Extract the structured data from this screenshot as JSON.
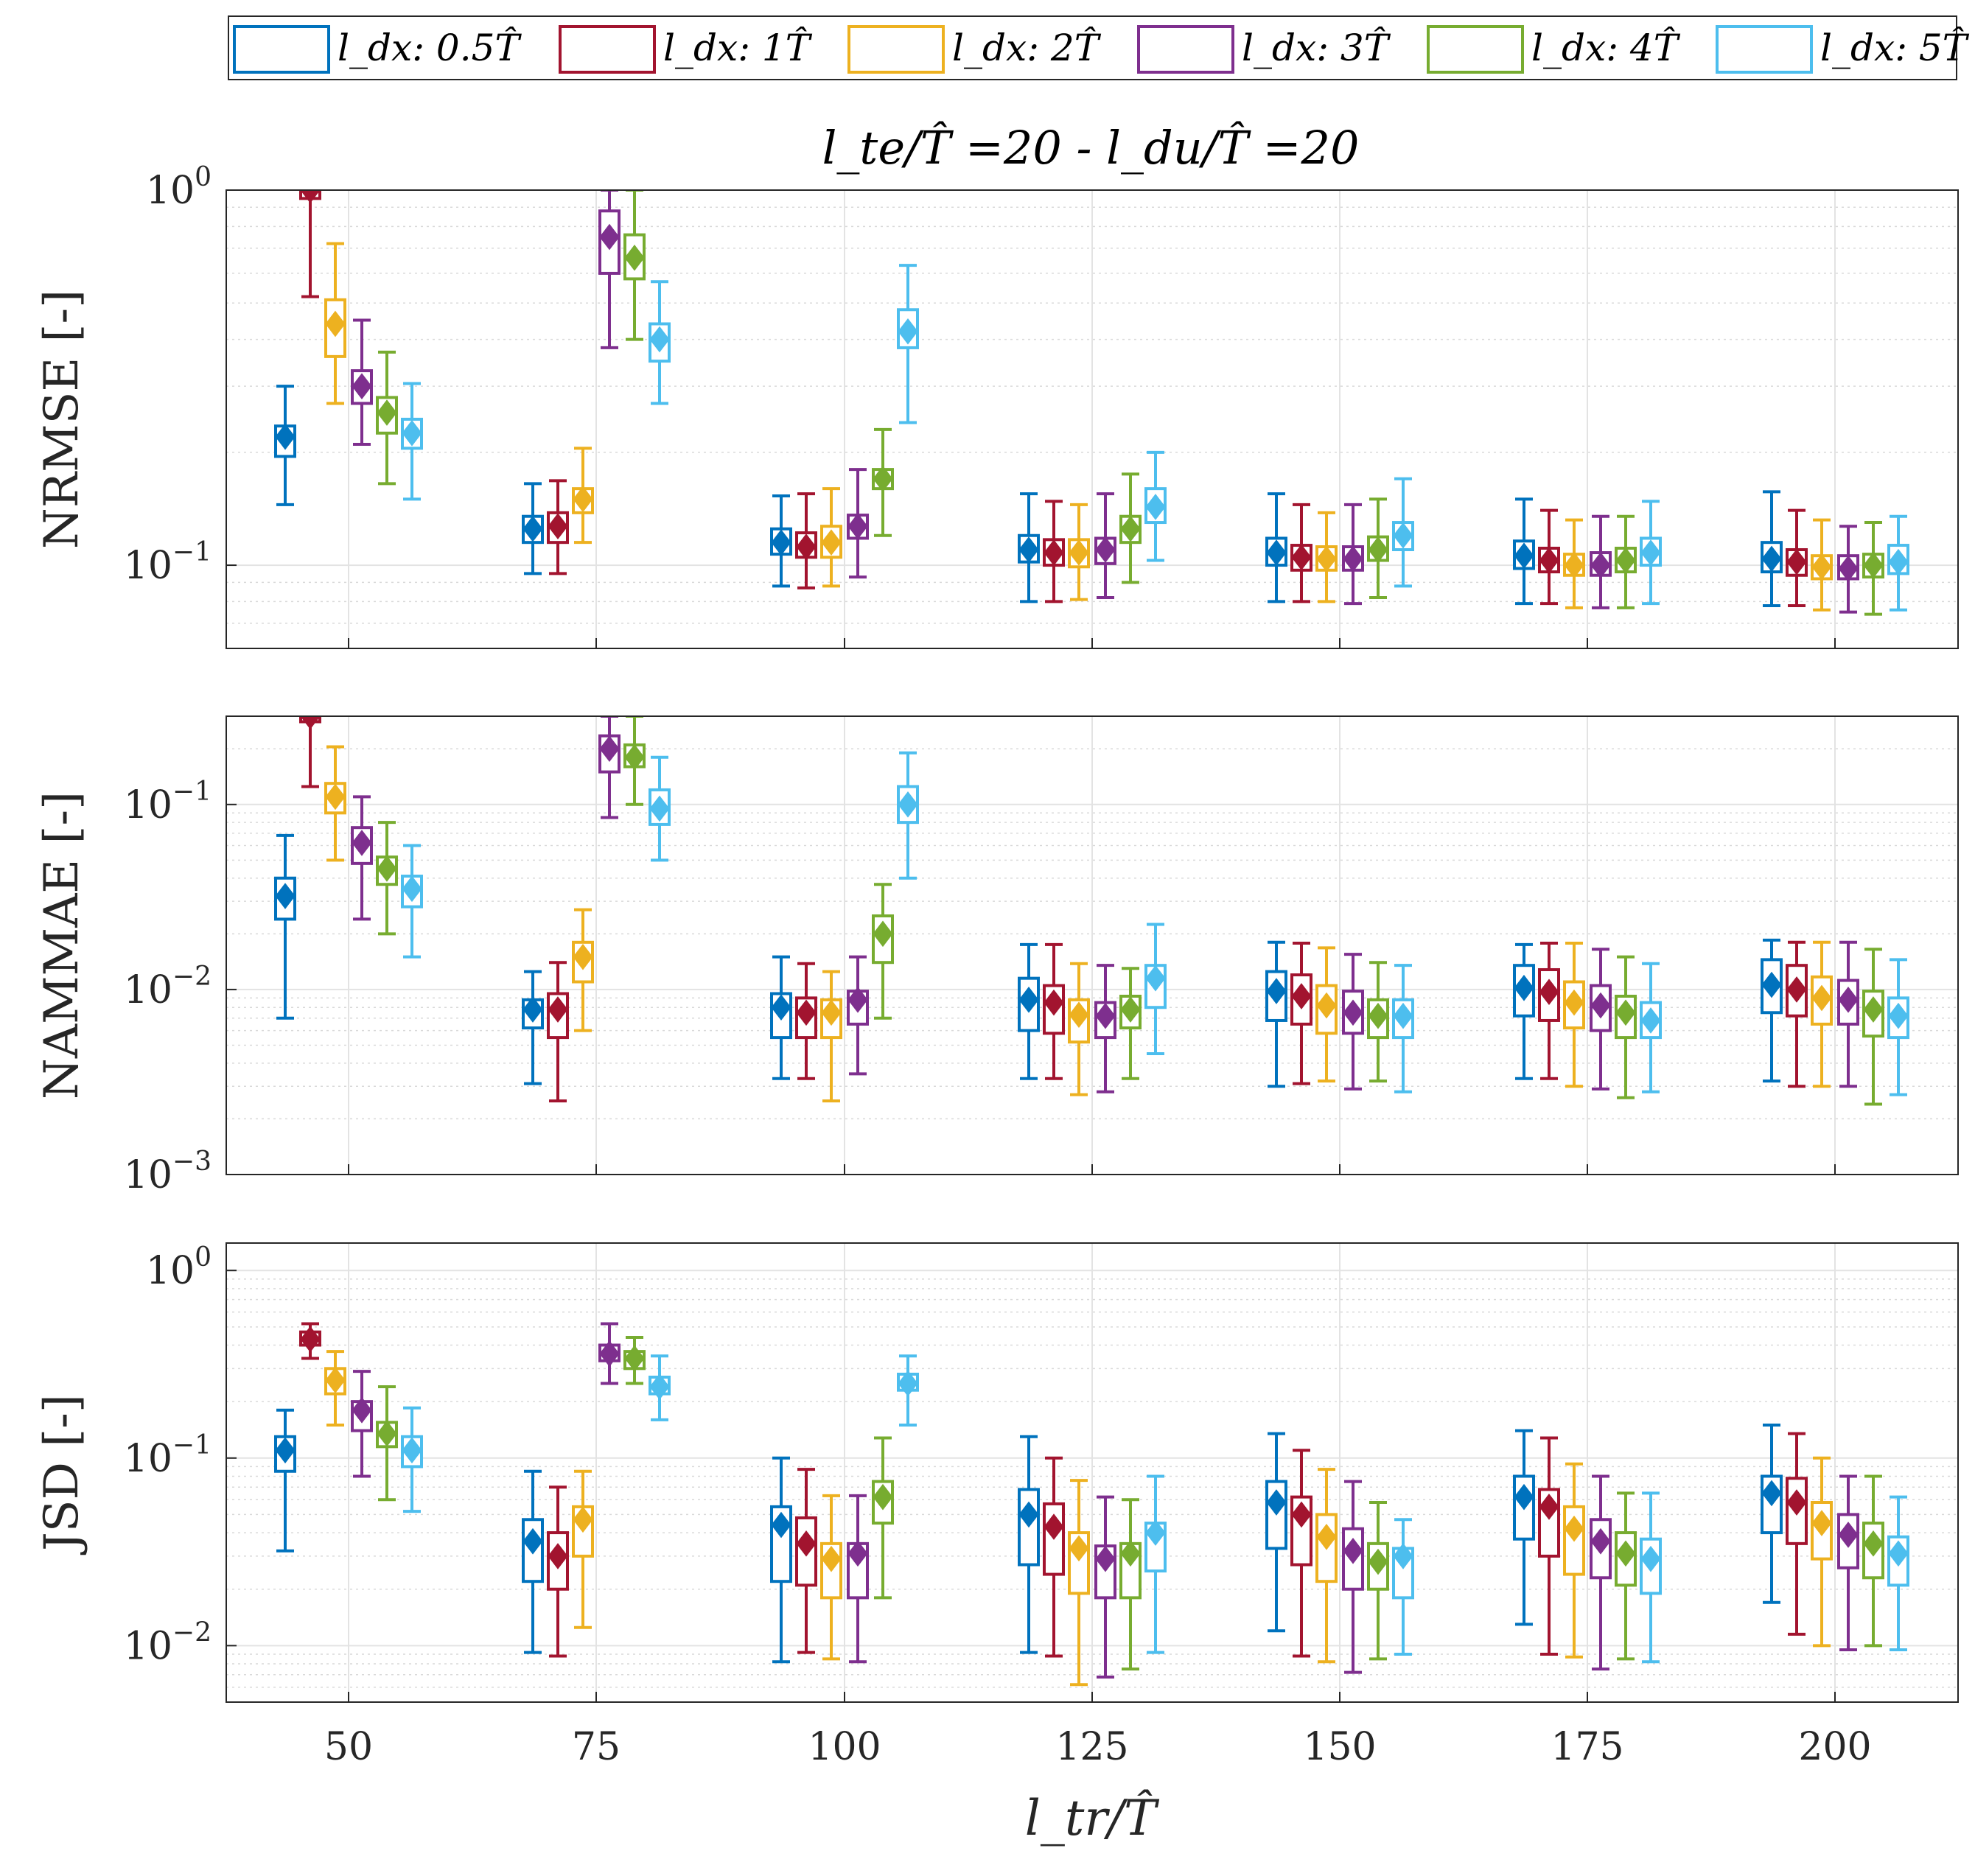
{
  "legend": [
    {
      "label": "l_dx: 0.5T̂",
      "color": "#0072BD"
    },
    {
      "label": "l_dx: 1T̂",
      "color": "#A2142F"
    },
    {
      "label": "l_dx: 2T̂",
      "color": "#EDB120"
    },
    {
      "label": "l_dx: 3T̂",
      "color": "#7E2F8E"
    },
    {
      "label": "l_dx: 4T̂",
      "color": "#77AC30"
    },
    {
      "label": "l_dx: 5T̂",
      "color": "#4DBEEE"
    }
  ],
  "figure": {
    "title": "l_te/T̂ =20 - l_du/T̂ =20",
    "xlabel": "l_tr/T̂"
  },
  "chart_data": [
    {
      "type": "box",
      "name": "nrmse",
      "ylabel": "NRMSE [-]",
      "yscale": "log",
      "ylim": [
        0.06,
        1.0
      ],
      "ytick_labels": [
        "10^0",
        "10^-1"
      ],
      "categories": [
        "50",
        "75",
        "100",
        "125",
        "150",
        "175",
        "200"
      ],
      "series": [
        {
          "name": "0.5T̂",
          "boxes": [
            [
              0.145,
              0.195,
              0.22,
              0.235,
              0.3
            ],
            [
              0.095,
              0.115,
              0.125,
              0.135,
              0.165
            ],
            [
              0.088,
              0.107,
              0.115,
              0.125,
              0.153
            ],
            [
              0.08,
              0.102,
              0.11,
              0.12,
              0.155
            ],
            [
              0.08,
              0.1,
              0.108,
              0.118,
              0.155
            ],
            [
              0.079,
              0.098,
              0.106,
              0.116,
              0.15
            ],
            [
              0.078,
              0.096,
              0.104,
              0.115,
              0.157
            ]
          ]
        },
        {
          "name": "1T̂",
          "boxes": [
            [
              0.52,
              0.95,
              1.0,
              1.0,
              1.0
            ],
            [
              0.095,
              0.115,
              0.127,
              0.138,
              0.168
            ],
            [
              0.087,
              0.105,
              0.112,
              0.122,
              0.155
            ],
            [
              0.08,
              0.1,
              0.108,
              0.117,
              0.148
            ],
            [
              0.08,
              0.097,
              0.105,
              0.113,
              0.145
            ],
            [
              0.079,
              0.096,
              0.103,
              0.111,
              0.14
            ],
            [
              0.078,
              0.094,
              0.102,
              0.11,
              0.14
            ]
          ]
        },
        {
          "name": "2T̂",
          "boxes": [
            [
              0.27,
              0.36,
              0.44,
              0.51,
              0.72
            ],
            [
              0.115,
              0.138,
              0.15,
              0.16,
              0.205
            ],
            [
              0.088,
              0.105,
              0.115,
              0.127,
              0.16
            ],
            [
              0.081,
              0.099,
              0.108,
              0.117,
              0.145
            ],
            [
              0.08,
              0.097,
              0.104,
              0.112,
              0.138
            ],
            [
              0.077,
              0.094,
              0.1,
              0.107,
              0.132
            ],
            [
              0.076,
              0.092,
              0.099,
              0.106,
              0.132
            ]
          ]
        },
        {
          "name": "3T̂",
          "boxes": [
            [
              0.21,
              0.27,
              0.3,
              0.33,
              0.45
            ],
            [
              0.38,
              0.6,
              0.75,
              0.88,
              1.0
            ],
            [
              0.093,
              0.118,
              0.127,
              0.136,
              0.18
            ],
            [
              0.082,
              0.101,
              0.11,
              0.118,
              0.155
            ],
            [
              0.079,
              0.097,
              0.104,
              0.112,
              0.145
            ],
            [
              0.077,
              0.094,
              0.1,
              0.108,
              0.135
            ],
            [
              0.075,
              0.092,
              0.098,
              0.106,
              0.127
            ]
          ]
        },
        {
          "name": "4T̂",
          "boxes": [
            [
              0.165,
              0.225,
              0.255,
              0.28,
              0.37
            ],
            [
              0.4,
              0.58,
              0.66,
              0.76,
              1.0
            ],
            [
              0.12,
              0.16,
              0.17,
              0.18,
              0.23
            ],
            [
              0.09,
              0.115,
              0.125,
              0.135,
              0.175
            ],
            [
              0.082,
              0.103,
              0.11,
              0.119,
              0.15
            ],
            [
              0.077,
              0.096,
              0.103,
              0.111,
              0.135
            ],
            [
              0.074,
              0.093,
              0.1,
              0.107,
              0.13
            ]
          ]
        },
        {
          "name": "5T̂",
          "boxes": [
            [
              0.15,
              0.205,
              0.225,
              0.245,
              0.305
            ],
            [
              0.27,
              0.35,
              0.4,
              0.44,
              0.57
            ],
            [
              0.24,
              0.38,
              0.42,
              0.48,
              0.63
            ],
            [
              0.103,
              0.13,
              0.143,
              0.16,
              0.2
            ],
            [
              0.088,
              0.11,
              0.12,
              0.13,
              0.17
            ],
            [
              0.079,
              0.1,
              0.108,
              0.118,
              0.148
            ],
            [
              0.076,
              0.095,
              0.102,
              0.113,
              0.135
            ]
          ]
        }
      ]
    },
    {
      "type": "box",
      "name": "nammae",
      "ylabel": "NAMMAE [-]",
      "yscale": "log",
      "ylim": [
        0.001,
        0.3
      ],
      "ytick_labels": [
        "10^-1",
        "10^-2",
        "10^-3"
      ],
      "categories": [
        "50",
        "75",
        "100",
        "125",
        "150",
        "175",
        "200"
      ],
      "series": [
        {
          "name": "0.5T̂",
          "boxes": [
            [
              0.007,
              0.024,
              0.032,
              0.04,
              0.068
            ],
            [
              0.0031,
              0.0062,
              0.0078,
              0.0088,
              0.0125
            ],
            [
              0.0033,
              0.0055,
              0.008,
              0.0095,
              0.015
            ],
            [
              0.0033,
              0.006,
              0.0088,
              0.0115,
              0.0175
            ],
            [
              0.003,
              0.0068,
              0.0098,
              0.0125,
              0.018
            ],
            [
              0.0033,
              0.0072,
              0.0102,
              0.0135,
              0.0175
            ],
            [
              0.0032,
              0.0075,
              0.0106,
              0.0145,
              0.0185
            ]
          ]
        },
        {
          "name": "1T̂",
          "boxes": [
            [
              0.125,
              0.28,
              0.3,
              0.3,
              0.3
            ],
            [
              0.0025,
              0.0055,
              0.0078,
              0.0095,
              0.014
            ],
            [
              0.0033,
              0.0055,
              0.0075,
              0.009,
              0.0138
            ],
            [
              0.0033,
              0.0058,
              0.0085,
              0.0105,
              0.0175
            ],
            [
              0.0031,
              0.0065,
              0.0092,
              0.012,
              0.0178
            ],
            [
              0.0033,
              0.0068,
              0.0097,
              0.0128,
              0.0178
            ],
            [
              0.003,
              0.0072,
              0.01,
              0.0135,
              0.018
            ]
          ]
        },
        {
          "name": "2T̂",
          "boxes": [
            [
              0.05,
              0.09,
              0.11,
              0.13,
              0.205
            ],
            [
              0.006,
              0.011,
              0.015,
              0.018,
              0.027
            ],
            [
              0.0025,
              0.0055,
              0.0075,
              0.0088,
              0.0125
            ],
            [
              0.0027,
              0.0052,
              0.0073,
              0.0088,
              0.0138
            ],
            [
              0.0032,
              0.0058,
              0.0082,
              0.0105,
              0.0168
            ],
            [
              0.003,
              0.0062,
              0.0085,
              0.011,
              0.0178
            ],
            [
              0.003,
              0.0065,
              0.009,
              0.0117,
              0.018
            ]
          ]
        },
        {
          "name": "3T̂",
          "boxes": [
            [
              0.024,
              0.048,
              0.062,
              0.075,
              0.11
            ],
            [
              0.085,
              0.15,
              0.2,
              0.235,
              0.3
            ],
            [
              0.0035,
              0.0065,
              0.0088,
              0.0098,
              0.015
            ],
            [
              0.0028,
              0.0055,
              0.0072,
              0.0085,
              0.0135
            ],
            [
              0.0029,
              0.0058,
              0.0075,
              0.0098,
              0.0155
            ],
            [
              0.0029,
              0.006,
              0.0082,
              0.0105,
              0.0165
            ],
            [
              0.003,
              0.0065,
              0.0088,
              0.0112,
              0.018
            ]
          ]
        },
        {
          "name": "4T̂",
          "boxes": [
            [
              0.02,
              0.037,
              0.045,
              0.052,
              0.08
            ],
            [
              0.1,
              0.16,
              0.18,
              0.21,
              0.3
            ],
            [
              0.007,
              0.014,
              0.02,
              0.025,
              0.037
            ],
            [
              0.0033,
              0.0062,
              0.0078,
              0.0092,
              0.013
            ],
            [
              0.0032,
              0.0055,
              0.0072,
              0.0088,
              0.014
            ],
            [
              0.0026,
              0.0055,
              0.0075,
              0.0092,
              0.015
            ],
            [
              0.0024,
              0.0056,
              0.0078,
              0.0098,
              0.0165
            ]
          ]
        },
        {
          "name": "5T̂",
          "boxes": [
            [
              0.015,
              0.028,
              0.035,
              0.041,
              0.06
            ],
            [
              0.05,
              0.078,
              0.095,
              0.12,
              0.18
            ],
            [
              0.04,
              0.08,
              0.1,
              0.125,
              0.19
            ],
            [
              0.0045,
              0.008,
              0.0115,
              0.0135,
              0.0225
            ],
            [
              0.0028,
              0.0055,
              0.0072,
              0.0088,
              0.0135
            ],
            [
              0.0028,
              0.0055,
              0.0068,
              0.0085,
              0.0138
            ],
            [
              0.0027,
              0.0055,
              0.0072,
              0.009,
              0.0145
            ]
          ]
        }
      ]
    },
    {
      "type": "box",
      "name": "jsd",
      "ylabel": "JSD [-]",
      "yscale": "log",
      "ylim": [
        0.005,
        1.4
      ],
      "ytick_labels": [
        "10^0",
        "10^-1",
        "10^-2"
      ],
      "categories": [
        "50",
        "75",
        "100",
        "125",
        "150",
        "175",
        "200"
      ],
      "series": [
        {
          "name": "0.5T̂",
          "boxes": [
            [
              0.032,
              0.085,
              0.11,
              0.13,
              0.18
            ],
            [
              0.0092,
              0.022,
              0.036,
              0.047,
              0.085
            ],
            [
              0.0082,
              0.022,
              0.044,
              0.055,
              0.1
            ],
            [
              0.0092,
              0.027,
              0.05,
              0.068,
              0.13
            ],
            [
              0.012,
              0.033,
              0.058,
              0.075,
              0.135
            ],
            [
              0.013,
              0.037,
              0.062,
              0.08,
              0.14
            ],
            [
              0.017,
              0.04,
              0.065,
              0.08,
              0.15
            ]
          ]
        },
        {
          "name": "1T̂",
          "boxes": [
            [
              0.34,
              0.4,
              0.43,
              0.47,
              0.52
            ],
            [
              0.0088,
              0.02,
              0.03,
              0.04,
              0.07
            ],
            [
              0.0092,
              0.021,
              0.035,
              0.048,
              0.087
            ],
            [
              0.0088,
              0.024,
              0.043,
              0.057,
              0.1
            ],
            [
              0.0088,
              0.027,
              0.05,
              0.062,
              0.11
            ],
            [
              0.009,
              0.03,
              0.055,
              0.068,
              0.128
            ],
            [
              0.0115,
              0.035,
              0.058,
              0.078,
              0.135
            ]
          ]
        },
        {
          "name": "2T̂",
          "boxes": [
            [
              0.15,
              0.22,
              0.26,
              0.3,
              0.37
            ],
            [
              0.0125,
              0.03,
              0.047,
              0.055,
              0.085
            ],
            [
              0.0085,
              0.018,
              0.029,
              0.035,
              0.063
            ],
            [
              0.0062,
              0.019,
              0.033,
              0.04,
              0.076
            ],
            [
              0.0082,
              0.022,
              0.038,
              0.05,
              0.087
            ],
            [
              0.0087,
              0.024,
              0.042,
              0.055,
              0.093
            ],
            [
              0.01,
              0.029,
              0.045,
              0.058,
              0.1
            ]
          ]
        },
        {
          "name": "3T̂",
          "boxes": [
            [
              0.08,
              0.14,
              0.18,
              0.2,
              0.29
            ],
            [
              0.25,
              0.33,
              0.36,
              0.4,
              0.52
            ],
            [
              0.0082,
              0.018,
              0.031,
              0.035,
              0.063
            ],
            [
              0.0068,
              0.018,
              0.029,
              0.034,
              0.062
            ],
            [
              0.0072,
              0.02,
              0.032,
              0.042,
              0.075
            ],
            [
              0.0075,
              0.023,
              0.036,
              0.047,
              0.08
            ],
            [
              0.0095,
              0.026,
              0.039,
              0.05,
              0.08
            ]
          ]
        },
        {
          "name": "4T̂",
          "boxes": [
            [
              0.06,
              0.115,
              0.135,
              0.155,
              0.24
            ],
            [
              0.25,
              0.3,
              0.34,
              0.37,
              0.44
            ],
            [
              0.018,
              0.045,
              0.062,
              0.075,
              0.128
            ],
            [
              0.0075,
              0.018,
              0.031,
              0.035,
              0.06
            ],
            [
              0.0085,
              0.02,
              0.028,
              0.035,
              0.058
            ],
            [
              0.0085,
              0.021,
              0.031,
              0.04,
              0.065
            ],
            [
              0.01,
              0.023,
              0.035,
              0.045,
              0.08
            ]
          ]
        },
        {
          "name": "5T̂",
          "boxes": [
            [
              0.052,
              0.09,
              0.11,
              0.13,
              0.185
            ],
            [
              0.16,
              0.22,
              0.24,
              0.27,
              0.35
            ],
            [
              0.15,
              0.23,
              0.25,
              0.28,
              0.35
            ],
            [
              0.0092,
              0.025,
              0.04,
              0.045,
              0.08
            ],
            [
              0.009,
              0.018,
              0.03,
              0.033,
              0.047
            ],
            [
              0.0082,
              0.019,
              0.029,
              0.037,
              0.065
            ],
            [
              0.0095,
              0.021,
              0.031,
              0.038,
              0.062
            ]
          ]
        }
      ]
    }
  ]
}
